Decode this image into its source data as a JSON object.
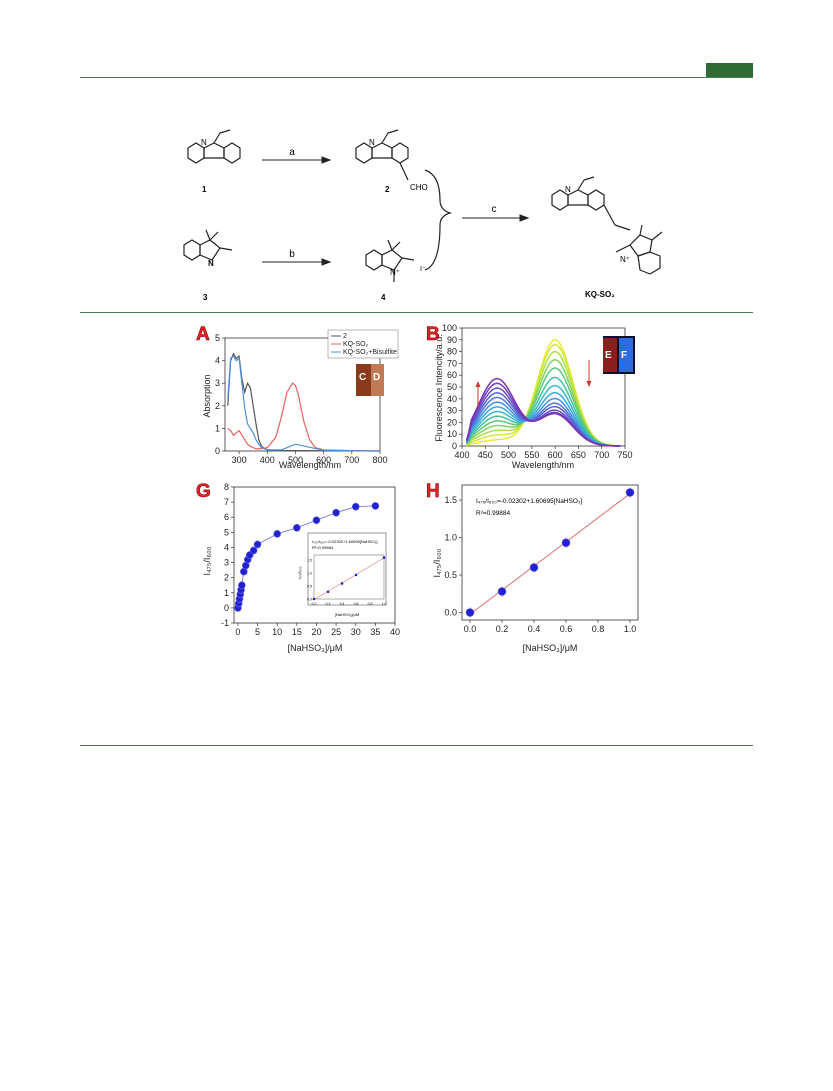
{
  "scheme": {
    "compound_labels": [
      "1",
      "2",
      "3",
      "4",
      "KQ-SO₂"
    ],
    "arrow_labels": [
      "a",
      "b",
      "c"
    ],
    "cho": "CHO",
    "iodide": "I⁻"
  },
  "panels": {
    "A": "A",
    "B": "B",
    "G": "G",
    "H": "H",
    "photo_labels": [
      "C",
      "D",
      "E",
      "F"
    ]
  },
  "chart_data": [
    {
      "id": "A",
      "type": "line",
      "xlabel": "Wavelength/nm",
      "ylabel": "Absorption",
      "xlim": [
        250,
        800
      ],
      "ylim": [
        0,
        5
      ],
      "xticks": [
        "300",
        "400",
        "500",
        "600",
        "700",
        "800"
      ],
      "yticks": [
        "0",
        "1",
        "2",
        "3",
        "4",
        "5"
      ],
      "legend": [
        "2",
        "KQ-SO₂",
        "KQ-SO₂+Bisulfite"
      ],
      "legend_position": "top-right",
      "series": [
        {
          "name": "2",
          "color": "#555555",
          "x": [
            260,
            270,
            280,
            290,
            300,
            310,
            320,
            330,
            340,
            350,
            360,
            370,
            380,
            400,
            450,
            500,
            600,
            800
          ],
          "y": [
            2.0,
            4.0,
            4.3,
            4.1,
            4.2,
            3.2,
            2.6,
            3.0,
            2.8,
            2.0,
            1.2,
            0.5,
            0.2,
            0.05,
            0.02,
            0.02,
            0.01,
            0.0
          ]
        },
        {
          "name": "KQ-SO₂",
          "color": "#f06060",
          "x": [
            260,
            270,
            280,
            290,
            300,
            310,
            320,
            330,
            340,
            350,
            360,
            380,
            400,
            430,
            450,
            470,
            490,
            500,
            510,
            530,
            550,
            570,
            600,
            700,
            800
          ],
          "y": [
            1.0,
            0.9,
            0.7,
            0.8,
            0.9,
            0.7,
            0.5,
            0.3,
            0.2,
            0.15,
            0.1,
            0.1,
            0.15,
            0.6,
            1.5,
            2.6,
            3.0,
            2.9,
            2.5,
            1.3,
            0.5,
            0.15,
            0.05,
            0.02,
            0.0
          ]
        },
        {
          "name": "KQ-SO₂+Bisulfite",
          "color": "#4a90d9",
          "x": [
            260,
            270,
            280,
            290,
            300,
            310,
            320,
            330,
            340,
            350,
            360,
            370,
            380,
            400,
            450,
            500,
            600,
            800
          ],
          "y": [
            2.3,
            4.1,
            4.2,
            4.0,
            4.1,
            3.0,
            1.9,
            1.2,
            1.0,
            0.8,
            0.5,
            0.3,
            0.15,
            0.05,
            0.05,
            0.3,
            0.03,
            0.0
          ]
        }
      ]
    },
    {
      "id": "B",
      "type": "line",
      "xlabel": "Wavelength/nm",
      "ylabel": "Fluorescence Intencity/a.u.",
      "xlim": [
        400,
        750
      ],
      "ylim": [
        0,
        100
      ],
      "xticks": [
        "400",
        "450",
        "500",
        "550",
        "600",
        "650",
        "700",
        "750"
      ],
      "yticks": [
        "0",
        "10",
        "20",
        "30",
        "40",
        "50",
        "60",
        "70",
        "80",
        "90",
        "100"
      ],
      "peaks": {
        "short": 475,
        "long": 600
      },
      "short_peak_heights": [
        5,
        9,
        13,
        17,
        21,
        25,
        29,
        33,
        37,
        41,
        45,
        49,
        53,
        57
      ],
      "long_peak_heights": [
        90,
        86,
        80,
        73,
        66,
        58,
        51,
        45,
        40,
        36,
        33,
        30,
        28,
        27
      ],
      "colors": [
        "#e8e832",
        "#d2e838",
        "#a9e042",
        "#7fd45a",
        "#5cc878",
        "#45bfa0",
        "#38b8c8",
        "#3aa8dc",
        "#4490e0",
        "#5078dc",
        "#5a62d4",
        "#6450c8",
        "#6e40bc",
        "#7a32b0"
      ]
    },
    {
      "id": "G",
      "type": "scatter",
      "xlabel": "[NaHSO₃]/μM",
      "ylabel": "I₄₇₅/I₆₀₀",
      "xlim": [
        -1,
        40
      ],
      "ylim": [
        -1,
        8
      ],
      "xticks": [
        "0",
        "5",
        "10",
        "15",
        "20",
        "25",
        "30",
        "35",
        "40"
      ],
      "yticks": [
        "-1",
        "0",
        "1",
        "2",
        "3",
        "4",
        "5",
        "6",
        "7",
        "8"
      ],
      "x": [
        0,
        0.2,
        0.4,
        0.6,
        0.8,
        1,
        1.5,
        2,
        2.5,
        3,
        4,
        5,
        10,
        15,
        20,
        25,
        30,
        35
      ],
      "y": [
        0,
        0.3,
        0.6,
        0.9,
        1.2,
        1.5,
        2.4,
        2.8,
        3.2,
        3.5,
        3.8,
        4.2,
        4.9,
        5.3,
        5.8,
        6.3,
        6.7,
        6.75
      ],
      "inset": {
        "xlabel": "[NaHSO₃]/μM",
        "ylabel": "I₄₇₅/I₆₀₀",
        "equation": "I₄₇₅/I₆₀₀=-0.02302+1.60695[NaHSO₃]",
        "r2": "R²=0.99884",
        "xticks": [
          "0.0",
          "0.2",
          "0.4",
          "0.6",
          "0.8",
          "1.0"
        ],
        "yticks": [
          "0.0",
          "0.5",
          "1.0",
          "1.5"
        ]
      }
    },
    {
      "id": "H",
      "type": "scatter",
      "xlabel": "[NaHSO₃]/μM",
      "ylabel": "I₄₇₅/I₆₀₀",
      "xlim": [
        -0.05,
        1.05
      ],
      "ylim": [
        -0.1,
        1.7
      ],
      "xticks": [
        "0.0",
        "0.2",
        "0.4",
        "0.6",
        "0.8",
        "1.0"
      ],
      "yticks": [
        "0.0",
        "0.5",
        "1.0",
        "1.5"
      ],
      "x": [
        0,
        0.2,
        0.4,
        0.6,
        1.0
      ],
      "y": [
        0,
        0.28,
        0.6,
        0.93,
        1.6
      ],
      "fit": {
        "intercept": -0.02302,
        "slope": 1.60695
      },
      "equation": "I₄₇₅/I₆₀₀=-0.02302+1.60695[NaHSO₃]",
      "r2": "R²=0.99884"
    }
  ]
}
